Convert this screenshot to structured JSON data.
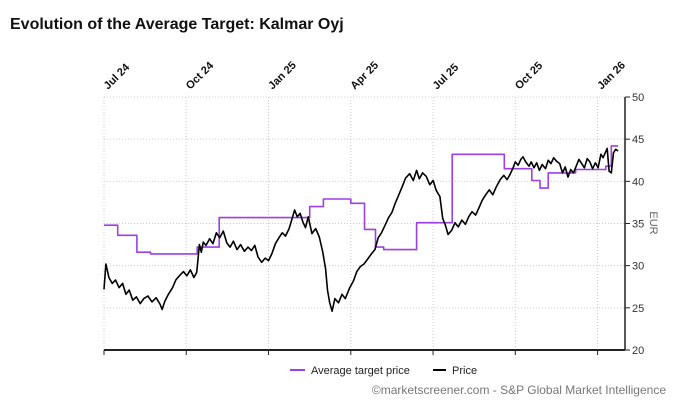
{
  "page": {
    "title": "Evolution of the Average Target: Kalmar Oyj"
  },
  "footer": {
    "credit": "©marketscreener.com - S&P Global Market Intelligence"
  },
  "colors": {
    "target": "#9d3fe7",
    "price": "#000000",
    "grid": "#cccccc",
    "axis": "#222222"
  },
  "chart_data": {
    "type": "line",
    "title": "Evolution of the Average Target: Kalmar Oyj",
    "xlabel": "",
    "ylabel": "EUR",
    "ylim": [
      20,
      50
    ],
    "xlim": [
      0,
      19
    ],
    "yticks": [
      20,
      25,
      30,
      35,
      40,
      45,
      50
    ],
    "grid": true,
    "legend": "bottom-center",
    "xticks": [
      {
        "label": "Jul 24",
        "x": 0
      },
      {
        "label": "Oct 24",
        "x": 3
      },
      {
        "label": "Jan 25",
        "x": 6
      },
      {
        "label": "Apr 25",
        "x": 9
      },
      {
        "label": "Jul 25",
        "x": 12
      },
      {
        "label": "Oct 25",
        "x": 15
      },
      {
        "label": "Jan 26",
        "x": 18
      }
    ],
    "series": [
      {
        "name": "Average target price",
        "step": true,
        "points": [
          [
            0.0,
            34.8
          ],
          [
            0.5,
            34.8
          ],
          [
            0.5,
            33.6
          ],
          [
            1.2,
            33.6
          ],
          [
            1.2,
            31.6
          ],
          [
            1.7,
            31.6
          ],
          [
            1.7,
            31.4
          ],
          [
            3.4,
            31.4
          ],
          [
            3.4,
            32.2
          ],
          [
            4.2,
            32.2
          ],
          [
            4.2,
            35.7
          ],
          [
            7.5,
            35.7
          ],
          [
            7.5,
            37.0
          ],
          [
            8.0,
            37.0
          ],
          [
            8.0,
            37.9
          ],
          [
            9.0,
            37.9
          ],
          [
            9.0,
            37.4
          ],
          [
            9.5,
            37.4
          ],
          [
            9.5,
            34.3
          ],
          [
            9.9,
            34.3
          ],
          [
            9.9,
            32.2
          ],
          [
            10.2,
            32.2
          ],
          [
            10.2,
            31.9
          ],
          [
            11.4,
            31.9
          ],
          [
            11.4,
            35.1
          ],
          [
            12.7,
            35.1
          ],
          [
            12.7,
            43.2
          ],
          [
            14.6,
            43.2
          ],
          [
            14.6,
            41.5
          ],
          [
            15.6,
            41.5
          ],
          [
            15.6,
            40.1
          ],
          [
            15.9,
            40.1
          ],
          [
            15.9,
            39.2
          ],
          [
            16.2,
            39.2
          ],
          [
            16.2,
            41.0
          ],
          [
            17.2,
            41.0
          ],
          [
            17.2,
            41.4
          ],
          [
            18.3,
            41.4
          ],
          [
            18.3,
            41.8
          ],
          [
            18.5,
            41.8
          ],
          [
            18.5,
            44.2
          ],
          [
            18.75,
            44.2
          ]
        ]
      },
      {
        "name": "Price",
        "step": false,
        "points": [
          [
            0.0,
            27.2
          ],
          [
            0.07,
            30.2
          ],
          [
            0.18,
            28.6
          ],
          [
            0.3,
            27.9
          ],
          [
            0.42,
            28.3
          ],
          [
            0.55,
            27.4
          ],
          [
            0.68,
            27.9
          ],
          [
            0.8,
            26.6
          ],
          [
            0.92,
            27.1
          ],
          [
            1.05,
            25.9
          ],
          [
            1.18,
            26.3
          ],
          [
            1.32,
            25.5
          ],
          [
            1.45,
            26.1
          ],
          [
            1.6,
            26.4
          ],
          [
            1.75,
            25.7
          ],
          [
            1.9,
            26.2
          ],
          [
            2.05,
            25.4
          ],
          [
            2.12,
            24.8
          ],
          [
            2.22,
            25.8
          ],
          [
            2.35,
            26.6
          ],
          [
            2.5,
            27.4
          ],
          [
            2.62,
            28.3
          ],
          [
            2.78,
            28.9
          ],
          [
            2.9,
            29.3
          ],
          [
            3.02,
            28.8
          ],
          [
            3.15,
            29.5
          ],
          [
            3.28,
            28.6
          ],
          [
            3.38,
            29.2
          ],
          [
            3.48,
            32.5
          ],
          [
            3.55,
            31.6
          ],
          [
            3.62,
            32.8
          ],
          [
            3.72,
            32.4
          ],
          [
            3.85,
            33.2
          ],
          [
            3.97,
            32.6
          ],
          [
            4.1,
            33.9
          ],
          [
            4.22,
            33.3
          ],
          [
            4.35,
            34.1
          ],
          [
            4.48,
            32.7
          ],
          [
            4.6,
            32.2
          ],
          [
            4.72,
            32.9
          ],
          [
            4.85,
            31.9
          ],
          [
            4.98,
            32.5
          ],
          [
            5.12,
            31.7
          ],
          [
            5.25,
            32.2
          ],
          [
            5.38,
            31.8
          ],
          [
            5.5,
            32.4
          ],
          [
            5.62,
            31.0
          ],
          [
            5.75,
            30.4
          ],
          [
            5.88,
            30.9
          ],
          [
            6.0,
            30.6
          ],
          [
            6.12,
            31.4
          ],
          [
            6.25,
            32.6
          ],
          [
            6.38,
            33.3
          ],
          [
            6.5,
            33.9
          ],
          [
            6.62,
            33.5
          ],
          [
            6.75,
            34.4
          ],
          [
            6.87,
            35.7
          ],
          [
            6.95,
            36.6
          ],
          [
            7.05,
            35.8
          ],
          [
            7.15,
            36.2
          ],
          [
            7.25,
            35.2
          ],
          [
            7.35,
            34.5
          ],
          [
            7.45,
            35.8
          ],
          [
            7.58,
            33.8
          ],
          [
            7.72,
            34.4
          ],
          [
            7.85,
            33.4
          ],
          [
            7.98,
            31.6
          ],
          [
            8.08,
            29.6
          ],
          [
            8.15,
            27.1
          ],
          [
            8.23,
            25.6
          ],
          [
            8.32,
            24.6
          ],
          [
            8.42,
            26.1
          ],
          [
            8.55,
            25.6
          ],
          [
            8.68,
            26.6
          ],
          [
            8.8,
            26.1
          ],
          [
            8.95,
            27.3
          ],
          [
            9.1,
            28.2
          ],
          [
            9.22,
            29.3
          ],
          [
            9.35,
            29.9
          ],
          [
            9.48,
            30.2
          ],
          [
            9.62,
            30.8
          ],
          [
            9.75,
            31.4
          ],
          [
            9.88,
            31.9
          ],
          [
            10.0,
            33.3
          ],
          [
            10.12,
            33.9
          ],
          [
            10.25,
            34.8
          ],
          [
            10.38,
            35.7
          ],
          [
            10.5,
            36.3
          ],
          [
            10.62,
            37.4
          ],
          [
            10.75,
            38.4
          ],
          [
            10.88,
            39.4
          ],
          [
            11.0,
            40.4
          ],
          [
            11.15,
            40.9
          ],
          [
            11.28,
            40.1
          ],
          [
            11.4,
            41.3
          ],
          [
            11.5,
            40.3
          ],
          [
            11.62,
            41.0
          ],
          [
            11.75,
            40.6
          ],
          [
            11.88,
            39.6
          ],
          [
            12.0,
            40.1
          ],
          [
            12.12,
            38.9
          ],
          [
            12.25,
            38.2
          ],
          [
            12.35,
            35.6
          ],
          [
            12.45,
            34.8
          ],
          [
            12.55,
            33.7
          ],
          [
            12.68,
            34.2
          ],
          [
            12.8,
            35.1
          ],
          [
            12.92,
            34.6
          ],
          [
            13.05,
            35.4
          ],
          [
            13.18,
            34.9
          ],
          [
            13.3,
            35.8
          ],
          [
            13.42,
            36.4
          ],
          [
            13.55,
            36.0
          ],
          [
            13.68,
            36.9
          ],
          [
            13.8,
            37.8
          ],
          [
            13.92,
            38.4
          ],
          [
            14.05,
            39.0
          ],
          [
            14.18,
            38.4
          ],
          [
            14.3,
            39.3
          ],
          [
            14.45,
            40.2
          ],
          [
            14.58,
            40.7
          ],
          [
            14.7,
            40.2
          ],
          [
            14.82,
            40.9
          ],
          [
            14.92,
            41.6
          ],
          [
            15.0,
            42.3
          ],
          [
            15.1,
            41.9
          ],
          [
            15.2,
            42.6
          ],
          [
            15.28,
            42.9
          ],
          [
            15.38,
            42.3
          ],
          [
            15.5,
            41.8
          ],
          [
            15.58,
            42.3
          ],
          [
            15.68,
            41.6
          ],
          [
            15.78,
            42.2
          ],
          [
            15.88,
            41.3
          ],
          [
            15.98,
            42.0
          ],
          [
            16.1,
            41.5
          ],
          [
            16.2,
            42.5
          ],
          [
            16.3,
            42.1
          ],
          [
            16.4,
            42.8
          ],
          [
            16.5,
            42.4
          ],
          [
            16.62,
            42.1
          ],
          [
            16.72,
            41.0
          ],
          [
            16.82,
            41.7
          ],
          [
            16.92,
            40.5
          ],
          [
            17.02,
            41.4
          ],
          [
            17.12,
            41.0
          ],
          [
            17.22,
            41.8
          ],
          [
            17.32,
            42.6
          ],
          [
            17.42,
            42.1
          ],
          [
            17.52,
            41.6
          ],
          [
            17.62,
            42.7
          ],
          [
            17.72,
            42.3
          ],
          [
            17.82,
            41.5
          ],
          [
            17.92,
            42.2
          ],
          [
            18.02,
            41.6
          ],
          [
            18.12,
            43.2
          ],
          [
            18.2,
            42.8
          ],
          [
            18.28,
            43.4
          ],
          [
            18.35,
            43.9
          ],
          [
            18.42,
            41.2
          ],
          [
            18.5,
            41.0
          ],
          [
            18.58,
            43.4
          ],
          [
            18.66,
            43.8
          ],
          [
            18.75,
            43.6
          ]
        ]
      }
    ]
  }
}
